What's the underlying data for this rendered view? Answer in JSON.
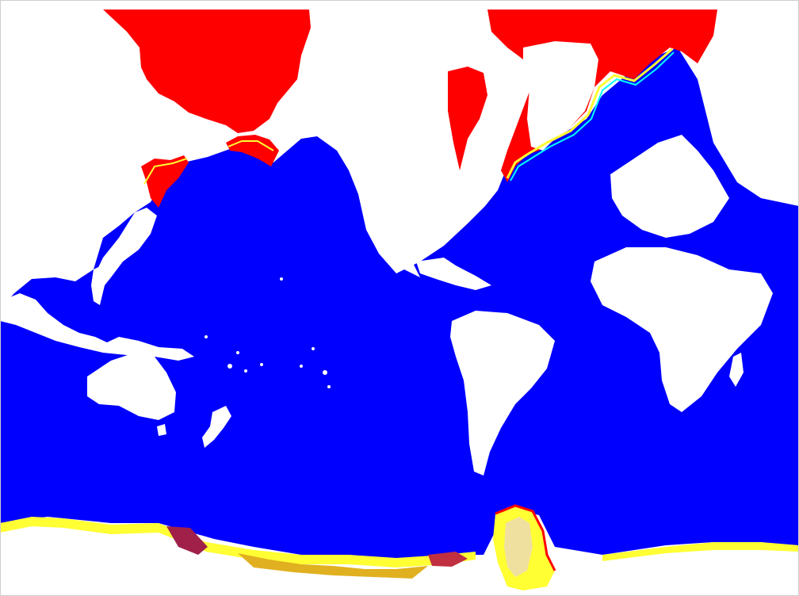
{
  "map": {
    "projection": "mercator",
    "center": "pacific",
    "legend": "none",
    "axes": "none",
    "colors": {
      "ocean": "#0000ff",
      "land": "#ffffff",
      "ice_high": "#ff0000",
      "ice_mid": "#ffff33",
      "ice_low": "#00ffff",
      "ice_dark": "#a0204a"
    },
    "features": [
      "north-america-ice",
      "eurasia-ice",
      "greenland",
      "north-pacific",
      "north-atlantic",
      "australia",
      "new-zealand",
      "south-america",
      "africa",
      "antarctica-ice-shelf",
      "antarctic-peninsula"
    ]
  }
}
